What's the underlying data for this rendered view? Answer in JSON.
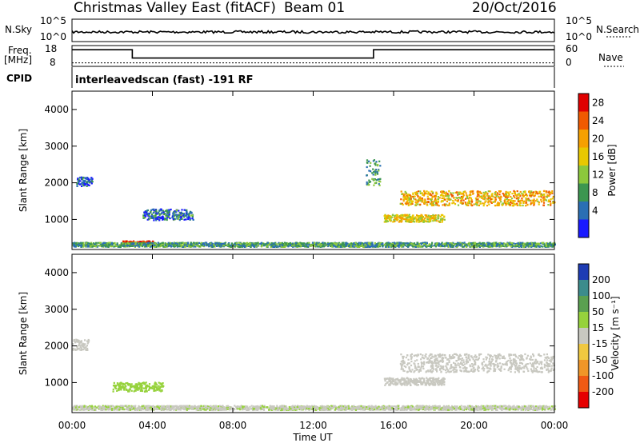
{
  "header": {
    "station": "Christmas Valley East (fitACF)",
    "beam": "Beam 01",
    "date": "20/Oct/2016"
  },
  "noise_panel": {
    "left_label": "N.Sky",
    "right_label": "N.Search",
    "left_ticks": [
      "10^5",
      "10^0"
    ],
    "right_ticks": [
      "10^5",
      "10^0"
    ]
  },
  "freq_panel": {
    "left_label_1": "Freq.",
    "left_label_2": "[MHz]",
    "right_label": "Nave",
    "left_ticks": [
      "18",
      "8"
    ],
    "right_ticks": [
      "60",
      "0"
    ]
  },
  "cpid_panel": {
    "label": "CPID",
    "text": "interleavedscan (fast) -191 RF"
  },
  "power_colorbar": {
    "label": "Power [dB]",
    "ticks": [
      "28",
      "24",
      "20",
      "16",
      "12",
      "8",
      "4"
    ],
    "colors": [
      "#e00000",
      "#f05a00",
      "#f5a000",
      "#e8c800",
      "#8cc83c",
      "#3c9650",
      "#2a6fb4",
      "#1a1aff"
    ]
  },
  "velocity_colorbar": {
    "label": "Velocity [m s⁻¹]",
    "ticks": [
      "200",
      "100",
      "50",
      "15",
      "-15",
      "-50",
      "-100",
      "-200"
    ],
    "colors": [
      "#1e3cb4",
      "#3c8c8c",
      "#5aa050",
      "#96d23c",
      "#c8c8c0",
      "#f0c840",
      "#f09628",
      "#f05a14",
      "#e60000"
    ]
  },
  "chart_data": {
    "type": "heatmap",
    "xlabel": "Time UT",
    "ylabel": "Slant Range [km]",
    "x_ticks": [
      "00:00",
      "04:00",
      "08:00",
      "12:00",
      "16:00",
      "20:00",
      "00:00"
    ],
    "y_ticks": [
      "4000",
      "3000",
      "2000",
      "1000"
    ],
    "xlim": [
      0,
      24
    ],
    "ylim": [
      180,
      4500
    ],
    "noise_sky_level": 1.5,
    "freq_steps": [
      {
        "start": 0,
        "end": 3,
        "freq": 14
      },
      {
        "start": 3,
        "end": 15,
        "freq": 10
      },
      {
        "start": 15,
        "end": 24,
        "freq": 14
      }
    ],
    "nave_level": 10,
    "power_regions": [
      {
        "t0": 16.3,
        "t1": 24,
        "r_center": 1600,
        "r_width": 400,
        "value": 20
      },
      {
        "t0": 15.5,
        "t1": 18.5,
        "r_center": 1050,
        "r_width": 200,
        "value": 18
      },
      {
        "t0": 2.5,
        "t1": 4.0,
        "r_center": 380,
        "r_width": 100,
        "value": 28
      },
      {
        "t0": 0,
        "t1": 24,
        "r_center": 330,
        "r_width": 120,
        "value": 10
      },
      {
        "t0": 0.2,
        "t1": 1.0,
        "r_center": 2050,
        "r_width": 250,
        "value": 6
      },
      {
        "t0": 3.5,
        "t1": 6.0,
        "r_center": 1150,
        "r_width": 300,
        "value": 7
      },
      {
        "t0": 14.6,
        "t1": 15.3,
        "r_center": 2300,
        "r_width": 700,
        "value": 10
      }
    ],
    "velocity_regions": [
      {
        "t0": 16.3,
        "t1": 24,
        "r_center": 1550,
        "r_width": 500,
        "value": 0
      },
      {
        "t0": 15.5,
        "t1": 18.5,
        "r_center": 1050,
        "r_width": 200,
        "value": 0
      },
      {
        "t0": 2.0,
        "t1": 4.5,
        "r_center": 900,
        "r_width": 250,
        "value": 30
      },
      {
        "t0": 0,
        "t1": 24,
        "r_center": 330,
        "r_width": 120,
        "value": 10
      },
      {
        "t0": 0,
        "t1": 0.8,
        "r_center": 2050,
        "r_width": 300,
        "value": 0
      }
    ]
  }
}
